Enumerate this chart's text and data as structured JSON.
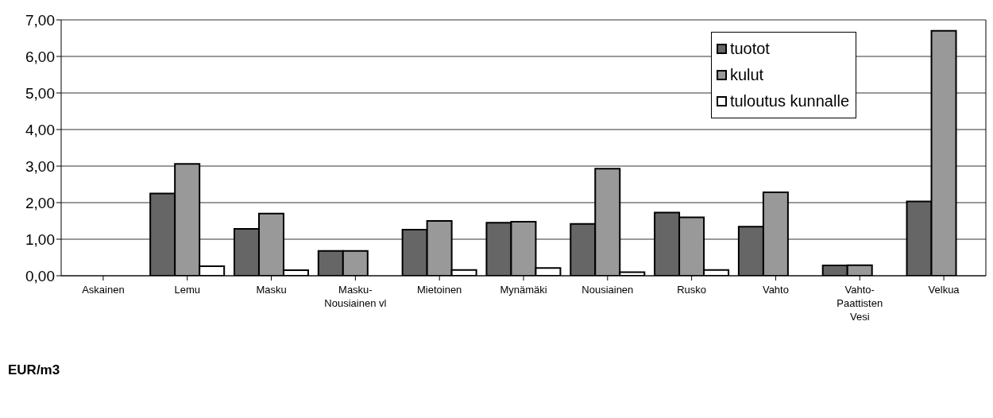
{
  "chart_data": {
    "type": "bar",
    "ylabel": "EUR/m3",
    "categories": [
      "Askainen",
      "Lemu",
      "Masku",
      "Masku-Nousiainen vl",
      "Mietoinen",
      "Mynämäki",
      "Nousiainen",
      "Rusko",
      "Vahto",
      "Vahto-Paattisten Vesi",
      "Velkua"
    ],
    "series": [
      {
        "name": "tuotot",
        "color": "#666666",
        "values": [
          null,
          2.25,
          1.28,
          0.68,
          1.26,
          1.45,
          1.42,
          1.73,
          1.34,
          0.28,
          2.03
        ]
      },
      {
        "name": "kulut",
        "color": "#999999",
        "values": [
          null,
          3.06,
          1.7,
          0.68,
          1.5,
          1.48,
          2.93,
          1.6,
          2.28,
          0.29,
          6.7
        ]
      },
      {
        "name": "tuloutus kunnalle",
        "color": "#ffffff",
        "values": [
          null,
          0.26,
          0.15,
          null,
          0.16,
          0.21,
          0.1,
          0.16,
          null,
          null,
          null
        ]
      }
    ],
    "ylim": [
      0,
      7
    ],
    "yticks": [
      {
        "value": 0,
        "label": "0,00"
      },
      {
        "value": 1,
        "label": "1,00"
      },
      {
        "value": 2,
        "label": "2,00"
      },
      {
        "value": 3,
        "label": "3,00"
      },
      {
        "value": 4,
        "label": "4,00"
      },
      {
        "value": 5,
        "label": "5,00"
      },
      {
        "value": 6,
        "label": "6,00"
      },
      {
        "value": 7,
        "label": "7,00"
      }
    ],
    "grid": "y",
    "legend": "top right"
  }
}
